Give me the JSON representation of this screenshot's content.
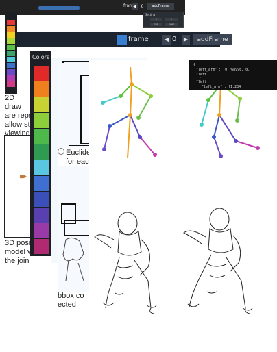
{
  "strip": {
    "frame_label": "frame",
    "frame_value": "0",
    "prev": "◀",
    "next": "▶",
    "add_frame": "addFrame"
  },
  "mini_panel": {
    "title": "Setting",
    "cells": [
      "x",
      "y",
      "link",
      "reset"
    ]
  },
  "left_panel_colors": [
    "#e63a3a",
    "#f08a24",
    "#f2d21e",
    "#a8d83a",
    "#5bbf4a",
    "#3da36a",
    "#4ec9d6",
    "#3a73c9",
    "#6a4ac9",
    "#b03cb6",
    "#d23a86"
  ],
  "frame_bar": {
    "label": "frame",
    "prev": "◀",
    "value": "0",
    "next": "▶",
    "add": "addFrame"
  },
  "colors_panel": {
    "title": "Colors",
    "swatches": [
      "#e02a2a",
      "#f0801e",
      "#c8d232",
      "#8ccf3a",
      "#4eb84a",
      "#2e9a52",
      "#5ac6e0",
      "#3f6fd0",
      "#3a4fb8",
      "#5a3fb0",
      "#9a3aa8",
      "#b02a72"
    ]
  },
  "doc": {
    "p1": [
      "2D draw",
      "are repr",
      "allow st",
      "viewing"
    ],
    "p2": [
      "3D posi",
      "model v",
      "the join"
    ],
    "p3": [
      "Euclide",
      "for each"
    ],
    "p4": [
      "bbox co",
      "ected"
    ]
  },
  "json_snippet": [
    "{",
    "\"left_arm\" : [0.768996, 0.",
    "\"left",
    "  {",
    "\"left",
    "\"left_arm\" : [1.234"
  ],
  "skeleton_colors": {
    "spine": "#f0a020",
    "left_arm_upper": "#5cc23a",
    "left_arm_lower": "#44c8c8",
    "right_arm_upper": "#8ccf3a",
    "right_arm_lower": "#6abf4a",
    "left_leg_upper": "#3a55c8",
    "left_leg_lower": "#6a4ac8",
    "right_leg_upper": "#5a48c0",
    "right_leg_lower": "#c23ab0"
  }
}
